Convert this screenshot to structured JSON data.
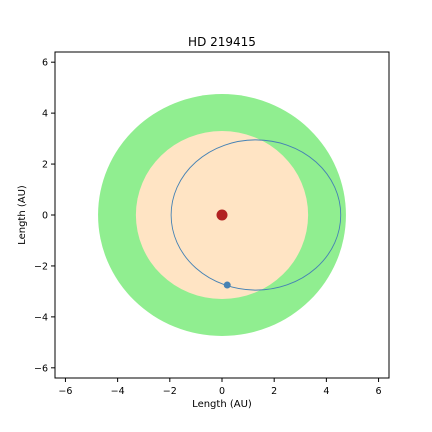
{
  "chart_data": {
    "type": "scatter",
    "title": "HD 219415",
    "xlabel": "Length (AU)",
    "ylabel": "Length (AU)",
    "xlim": [
      -6.4,
      6.4
    ],
    "ylim": [
      -6.4,
      6.4
    ],
    "ticks": [
      -6,
      -4,
      -2,
      0,
      2,
      4,
      6
    ],
    "grid": false,
    "zones": [
      {
        "kind": "outer-region",
        "radius_au": 4.75,
        "color": "#90ee90"
      },
      {
        "kind": "inner-region",
        "radius_au": 3.3,
        "color": "#ffe4c4"
      }
    ],
    "star": {
      "x": 0,
      "y": 0,
      "color": "#b22222"
    },
    "orbit": {
      "center_x": 1.3,
      "center_y": 0,
      "semi_major_au": 3.25,
      "semi_minor_au": 2.95,
      "color": "#4682b4"
    },
    "planet": {
      "x": 0.2,
      "y": -2.75,
      "color": "#4682b4"
    }
  }
}
